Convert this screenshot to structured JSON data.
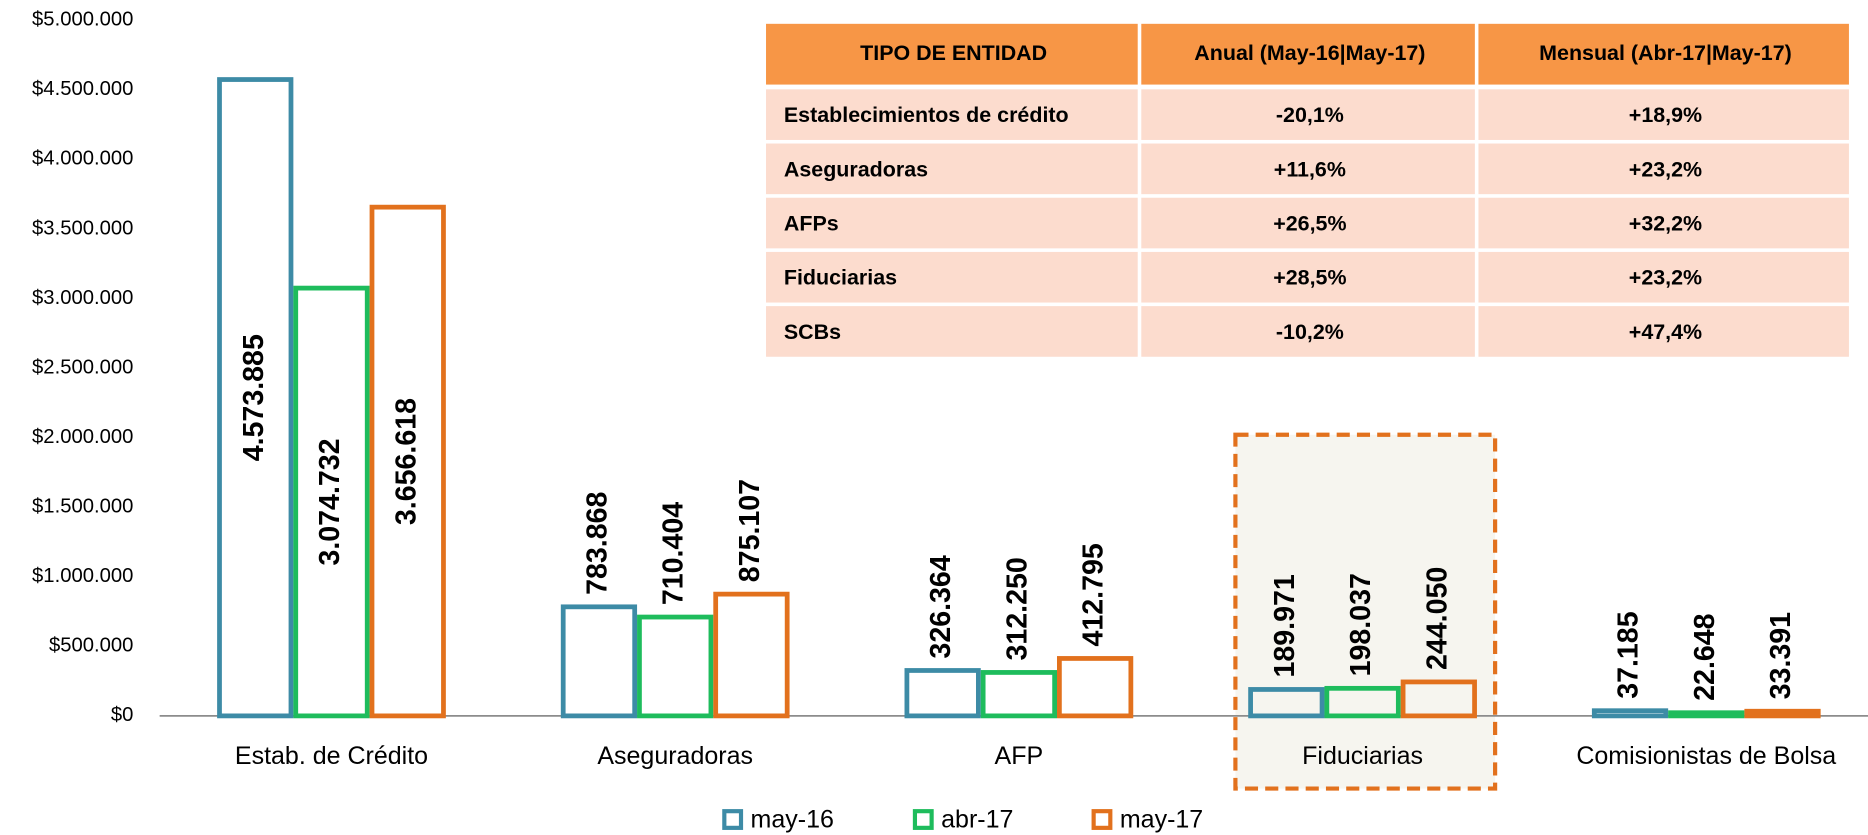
{
  "chart_data": {
    "type": "bar",
    "categories": [
      "Estab. de Crédito",
      "Aseguradoras",
      "AFP",
      "Fiduciarias",
      "Comisionistas de Bolsa"
    ],
    "series": [
      {
        "name": "may-16",
        "color": "#3d8ba6",
        "label_color": "#3a8aa3",
        "values": [
          4573885,
          783868,
          326364,
          189971,
          37185
        ],
        "value_labels": [
          "4.573.885",
          "783.868",
          "326.364",
          "189.971",
          "37.185"
        ]
      },
      {
        "name": "abr-17",
        "color": "#1ebc5c",
        "label_color": "#168a28",
        "values": [
          3074732,
          710404,
          312250,
          198037,
          22648
        ],
        "value_labels": [
          "3.074.732",
          "710.404",
          "312.250",
          "198.037",
          "22.648"
        ]
      },
      {
        "name": "may-17",
        "color": "#e2711d",
        "label_color": "#e8711e",
        "values": [
          3656618,
          875107,
          412795,
          244050,
          33391
        ],
        "value_labels": [
          "3.656.618",
          "875.107",
          "412.795",
          "244.050",
          "33.391"
        ]
      }
    ],
    "ylim": [
      0,
      5000000
    ],
    "yticks": [
      {
        "value": 0,
        "label": "$0"
      },
      {
        "value": 500000,
        "label": "$500.000"
      },
      {
        "value": 1000000,
        "label": "$1.000.000"
      },
      {
        "value": 1500000,
        "label": "$1.500.000"
      },
      {
        "value": 2000000,
        "label": "$2.000.000"
      },
      {
        "value": 2500000,
        "label": "$2.500.000"
      },
      {
        "value": 3000000,
        "label": "$3.000.000"
      },
      {
        "value": 3500000,
        "label": "$3.500.000"
      },
      {
        "value": 4000000,
        "label": "$4.000.000"
      },
      {
        "value": 4500000,
        "label": "$4.500.000"
      },
      {
        "value": 5000000,
        "label": "$5.000.000"
      }
    ],
    "legend": "bottom"
  },
  "table": {
    "header": [
      "TIPO DE ENTIDAD",
      "Anual (May-16|May-17)",
      "Mensual (Abr-17|May-17)"
    ],
    "rows": [
      [
        "Establecimientos de crédito",
        "-20,1%",
        "+18,9%"
      ],
      [
        "Aseguradoras",
        "+11,6%",
        "+23,2%"
      ],
      [
        "AFPs",
        "+26,5%",
        "+32,2%"
      ],
      [
        "Fiduciarias",
        "+28,5%",
        "+23,2%"
      ],
      [
        "SCBs",
        "-10,2%",
        "+47,4%"
      ]
    ],
    "header_color": "#f79646",
    "row_color": "#fcdcce",
    "negative_color": "#ff0000"
  }
}
